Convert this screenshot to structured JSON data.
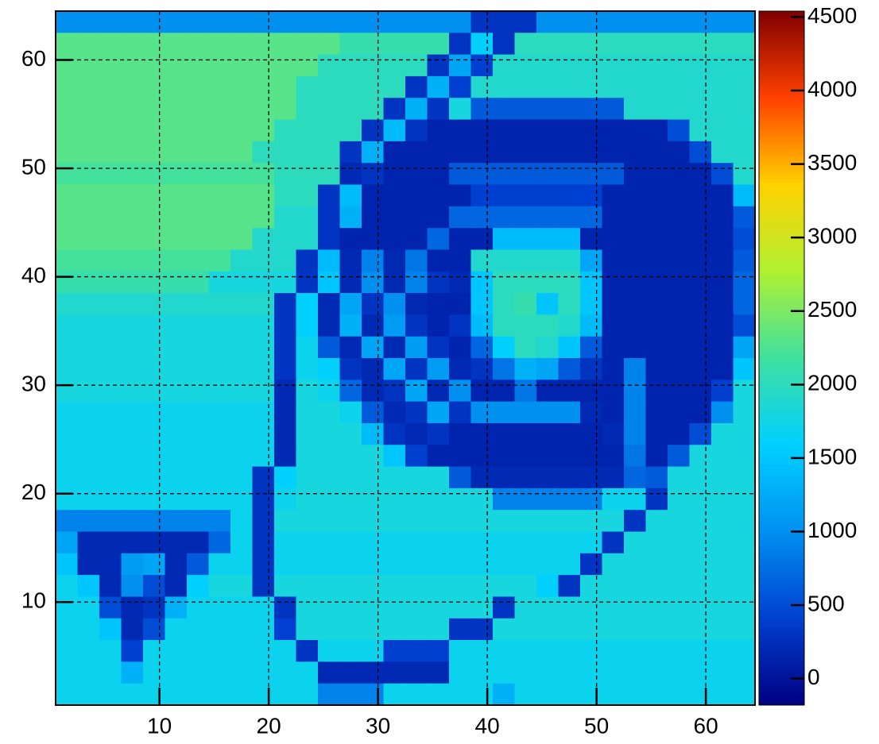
{
  "chart_data": {
    "type": "heatmap",
    "xbins": [
      0.5,
      2.5,
      4.5,
      6.5,
      8.5,
      10.5,
      12.5,
      14.5,
      16.5,
      18.5,
      20.5,
      22.5,
      24.5,
      26.5,
      28.5,
      30.5,
      32.5,
      34.5,
      36.5,
      38.5,
      40.5,
      42.5,
      44.5,
      46.5,
      48.5,
      50.5,
      52.5,
      54.5,
      56.5,
      58.5,
      60.5,
      62.5,
      64.5
    ],
    "ybins": [
      64.5,
      62.5,
      60.5,
      58.5,
      56.5,
      54.5,
      52.5,
      50.5,
      48.5,
      46.5,
      44.5,
      42.5,
      40.5,
      38.5,
      36.5,
      34.5,
      32.5,
      30.5,
      28.5,
      26.5,
      24.5,
      22.5,
      20.5,
      18.5,
      16.5,
      14.5,
      12.5,
      10.5,
      8.5,
      6.5,
      4.5,
      2.5,
      0.5
    ],
    "z": [
      [
        1000,
        1000,
        1000,
        1000,
        1000,
        1000,
        1000,
        1000,
        1000,
        1000,
        1000,
        1000,
        1000,
        1000,
        1000,
        1000,
        1000,
        1000,
        1000,
        300,
        300,
        300,
        1000,
        1000,
        1000,
        1000,
        1000,
        1000,
        1000,
        1000,
        1000,
        1000
      ],
      [
        2300,
        2300,
        2300,
        2300,
        2300,
        2300,
        2300,
        2300,
        2300,
        2300,
        2300,
        2300,
        2300,
        2100,
        2100,
        2100,
        2100,
        2100,
        300,
        1600,
        300,
        2000,
        2000,
        2000,
        2000,
        2000,
        2000,
        2000,
        2000,
        2000,
        2000,
        2000
      ],
      [
        2300,
        2300,
        2300,
        2300,
        2300,
        2300,
        2300,
        2300,
        2300,
        2300,
        2300,
        2300,
        2000,
        2000,
        2000,
        2000,
        2000,
        300,
        1200,
        400,
        1900,
        1900,
        1900,
        1900,
        1900,
        1900,
        1900,
        1900,
        1900,
        1900,
        1900,
        1900
      ],
      [
        2300,
        2300,
        2300,
        2300,
        2300,
        2300,
        2300,
        2300,
        2300,
        2300,
        2300,
        2000,
        2000,
        2000,
        2000,
        2000,
        300,
        1300,
        400,
        1900,
        1900,
        1900,
        1900,
        1900,
        1900,
        1900,
        1900,
        1900,
        1900,
        1900,
        1900,
        1900
      ],
      [
        2300,
        2300,
        2300,
        2300,
        2300,
        2300,
        2300,
        2300,
        2300,
        2300,
        2300,
        2000,
        2000,
        2000,
        2000,
        300,
        1300,
        300,
        1800,
        600,
        600,
        600,
        600,
        600,
        600,
        600,
        1900,
        1900,
        1900,
        1900,
        1900,
        1900
      ],
      [
        2300,
        2300,
        2300,
        2300,
        2300,
        2300,
        2300,
        2300,
        2300,
        2300,
        2000,
        2000,
        2000,
        2000,
        300,
        1400,
        300,
        150,
        150,
        150,
        150,
        150,
        150,
        150,
        150,
        150,
        150,
        150,
        500,
        1900,
        1900,
        1900
      ],
      [
        2300,
        2300,
        2300,
        2300,
        2300,
        2300,
        2300,
        2300,
        2300,
        2000,
        2000,
        2000,
        2000,
        300,
        1300,
        150,
        150,
        150,
        150,
        150,
        150,
        150,
        150,
        150,
        150,
        150,
        150,
        150,
        150,
        500,
        1900,
        1900
      ],
      [
        2200,
        2200,
        2200,
        2200,
        2200,
        2200,
        2200,
        2200,
        2200,
        2200,
        2000,
        2000,
        2000,
        200,
        300,
        150,
        150,
        150,
        600,
        600,
        600,
        600,
        600,
        600,
        600,
        600,
        150,
        150,
        150,
        150,
        500,
        1900
      ],
      [
        2300,
        2300,
        2300,
        2300,
        2300,
        2300,
        2300,
        2300,
        2300,
        2300,
        2000,
        2000,
        300,
        1400,
        150,
        150,
        150,
        150,
        150,
        400,
        400,
        400,
        400,
        400,
        400,
        150,
        150,
        150,
        150,
        150,
        150,
        1400
      ],
      [
        2300,
        2300,
        2300,
        2300,
        2300,
        2300,
        2300,
        2300,
        2300,
        2300,
        1900,
        1900,
        300,
        1300,
        150,
        150,
        150,
        150,
        700,
        700,
        700,
        700,
        700,
        700,
        700,
        150,
        150,
        150,
        150,
        150,
        150,
        600
      ],
      [
        2300,
        2300,
        2300,
        2300,
        2300,
        2300,
        2300,
        2300,
        2300,
        1900,
        1900,
        1900,
        300,
        150,
        150,
        150,
        150,
        700,
        150,
        150,
        1400,
        1400,
        1400,
        1400,
        150,
        150,
        150,
        150,
        150,
        150,
        150,
        500
      ],
      [
        2200,
        2200,
        2200,
        2200,
        2200,
        2200,
        2200,
        2200,
        1900,
        1900,
        1900,
        300,
        1400,
        200,
        900,
        200,
        800,
        150,
        150,
        1900,
        1900,
        1900,
        1900,
        1900,
        1200,
        150,
        150,
        150,
        150,
        150,
        150,
        600
      ],
      [
        2100,
        2100,
        2100,
        2100,
        2100,
        2100,
        2100,
        1800,
        1800,
        1800,
        1800,
        300,
        1500,
        200,
        1000,
        200,
        900,
        300,
        200,
        1500,
        2000,
        2000,
        2000,
        2000,
        1500,
        150,
        150,
        150,
        150,
        150,
        150,
        700
      ],
      [
        1900,
        1900,
        1900,
        1900,
        1900,
        1900,
        1900,
        1900,
        1900,
        1900,
        300,
        1600,
        200,
        1200,
        300,
        1000,
        200,
        150,
        150,
        1500,
        2000,
        2100,
        1500,
        2000,
        1500,
        150,
        150,
        150,
        150,
        150,
        150,
        700
      ],
      [
        1800,
        1800,
        1800,
        1800,
        1800,
        1800,
        1800,
        1800,
        1800,
        1800,
        300,
        1600,
        200,
        1300,
        200,
        1100,
        300,
        150,
        300,
        1400,
        2000,
        2000,
        2000,
        1900,
        1400,
        150,
        150,
        150,
        150,
        150,
        150,
        500
      ],
      [
        1800,
        1800,
        1800,
        1800,
        1800,
        1800,
        1800,
        1800,
        1800,
        1800,
        300,
        1700,
        600,
        200,
        1200,
        200,
        1100,
        300,
        150,
        700,
        1600,
        2000,
        1900,
        1500,
        600,
        150,
        150,
        150,
        150,
        150,
        150,
        1200
      ],
      [
        1800,
        1800,
        1800,
        1800,
        1800,
        1800,
        1800,
        1800,
        1800,
        1800,
        300,
        1700,
        1600,
        300,
        200,
        1200,
        300,
        1100,
        200,
        300,
        800,
        1300,
        1200,
        600,
        300,
        150,
        900,
        150,
        150,
        150,
        150,
        1500
      ],
      [
        1800,
        1800,
        1800,
        1800,
        1800,
        1800,
        1800,
        1800,
        1800,
        1800,
        200,
        1800,
        1700,
        700,
        200,
        300,
        1200,
        200,
        1000,
        150,
        150,
        800,
        150,
        150,
        150,
        150,
        900,
        150,
        150,
        150,
        400,
        1800
      ],
      [
        1700,
        1700,
        1700,
        1700,
        1700,
        1700,
        1700,
        1700,
        1700,
        1700,
        200,
        1800,
        1800,
        1700,
        600,
        200,
        300,
        1200,
        300,
        1000,
        1000,
        1000,
        1000,
        1000,
        200,
        150,
        900,
        150,
        150,
        150,
        1000,
        1800
      ],
      [
        1700,
        1700,
        1700,
        1700,
        1700,
        1700,
        1700,
        1700,
        1700,
        1700,
        200,
        1800,
        1800,
        1800,
        1400,
        300,
        200,
        300,
        150,
        150,
        150,
        150,
        150,
        150,
        150,
        200,
        900,
        150,
        150,
        500,
        1800,
        1800
      ],
      [
        1700,
        1700,
        1700,
        1700,
        1700,
        1700,
        1700,
        1700,
        1700,
        1700,
        200,
        1800,
        1800,
        1800,
        1800,
        1500,
        400,
        150,
        150,
        150,
        150,
        150,
        150,
        150,
        150,
        150,
        800,
        150,
        600,
        1800,
        1800,
        1800
      ],
      [
        1700,
        1700,
        1700,
        1700,
        1700,
        1700,
        1700,
        1700,
        1700,
        300,
        1600,
        1800,
        1800,
        1800,
        1800,
        1800,
        1800,
        1800,
        600,
        200,
        200,
        200,
        200,
        200,
        200,
        200,
        700,
        600,
        1800,
        1800,
        1800,
        1800
      ],
      [
        1700,
        1700,
        1700,
        1700,
        1700,
        1700,
        1700,
        1700,
        1700,
        300,
        1700,
        1800,
        1800,
        1800,
        1800,
        1800,
        1800,
        1800,
        1800,
        1800,
        900,
        900,
        900,
        900,
        900,
        1700,
        1700,
        300,
        1800,
        1800,
        1800,
        1800
      ],
      [
        900,
        900,
        900,
        900,
        900,
        900,
        900,
        900,
        1700,
        300,
        1800,
        1800,
        1800,
        1800,
        1800,
        1800,
        1800,
        1800,
        1800,
        1800,
        1800,
        1800,
        1800,
        1800,
        1800,
        1800,
        300,
        1800,
        1800,
        1800,
        1800,
        1800
      ],
      [
        1200,
        200,
        200,
        200,
        200,
        200,
        200,
        700,
        1700,
        300,
        1700,
        1700,
        1700,
        1700,
        1700,
        1700,
        1700,
        1700,
        1700,
        1700,
        1700,
        1700,
        1700,
        1700,
        1700,
        300,
        1800,
        1800,
        1800,
        1800,
        1800,
        1800
      ],
      [
        1500,
        200,
        200,
        1100,
        1200,
        200,
        600,
        1700,
        1700,
        300,
        1700,
        1700,
        1700,
        1700,
        1700,
        1700,
        1700,
        1700,
        1700,
        1700,
        1700,
        1700,
        1700,
        1700,
        300,
        1800,
        1800,
        1800,
        1800,
        1800,
        1800,
        1800
      ],
      [
        1700,
        1500,
        200,
        1000,
        500,
        200,
        1600,
        1800,
        1800,
        300,
        1800,
        1800,
        1800,
        1800,
        1800,
        1800,
        1800,
        1800,
        1800,
        1800,
        1800,
        1800,
        1600,
        300,
        1800,
        1800,
        1800,
        1800,
        1800,
        1800,
        1800,
        1800
      ],
      [
        1700,
        1700,
        500,
        200,
        300,
        1300,
        1700,
        1700,
        1700,
        1700,
        300,
        1800,
        1800,
        1800,
        1800,
        1800,
        1800,
        1800,
        1800,
        1800,
        300,
        1800,
        1800,
        1800,
        1800,
        1800,
        1800,
        1800,
        1800,
        1800,
        1800,
        1800
      ],
      [
        1700,
        1700,
        1500,
        200,
        500,
        1700,
        1700,
        1700,
        1700,
        1700,
        400,
        1800,
        1800,
        1800,
        1800,
        1800,
        1800,
        1800,
        300,
        300,
        1800,
        1800,
        1800,
        1800,
        1800,
        1800,
        1800,
        1800,
        1800,
        1800,
        1800,
        1800
      ],
      [
        1700,
        1700,
        1700,
        400,
        1700,
        1700,
        1700,
        1700,
        1700,
        1700,
        1700,
        300,
        1700,
        1700,
        1700,
        400,
        400,
        400,
        1700,
        1700,
        1700,
        1700,
        1700,
        1700,
        1700,
        1700,
        1700,
        1700,
        1700,
        1700,
        1700,
        1700
      ],
      [
        1700,
        1700,
        1700,
        1300,
        1700,
        1700,
        1700,
        1700,
        1700,
        1700,
        1700,
        1700,
        200,
        200,
        200,
        200,
        200,
        200,
        1700,
        1700,
        1700,
        1700,
        1700,
        1700,
        1700,
        1700,
        1700,
        1700,
        1700,
        1700,
        1700,
        1700
      ],
      [
        1700,
        1700,
        1700,
        1700,
        1700,
        1700,
        1700,
        1700,
        1700,
        1700,
        1700,
        1700,
        900,
        900,
        900,
        1700,
        1700,
        1700,
        1700,
        1700,
        1300,
        1700,
        1700,
        1700,
        1700,
        1700,
        1700,
        1700,
        1700,
        1700,
        1700,
        1700
      ]
    ],
    "xlim": [
      0.5,
      64.5
    ],
    "ylim": [
      0.5,
      64.5
    ],
    "xticks": [
      10,
      20,
      30,
      40,
      50,
      60
    ],
    "yticks": [
      10,
      20,
      30,
      40,
      50,
      60
    ],
    "zlim": [
      -180,
      4540
    ],
    "zticks": [
      0,
      500,
      1000,
      1500,
      2000,
      2500,
      3000,
      3500,
      4000,
      4500
    ],
    "colormap": [
      "#000080",
      "#0040d0",
      "#0090f0",
      "#00d0ff",
      "#40e0a0",
      "#b0f030",
      "#ffd000",
      "#ff4000",
      "#800000"
    ],
    "grid": true
  }
}
